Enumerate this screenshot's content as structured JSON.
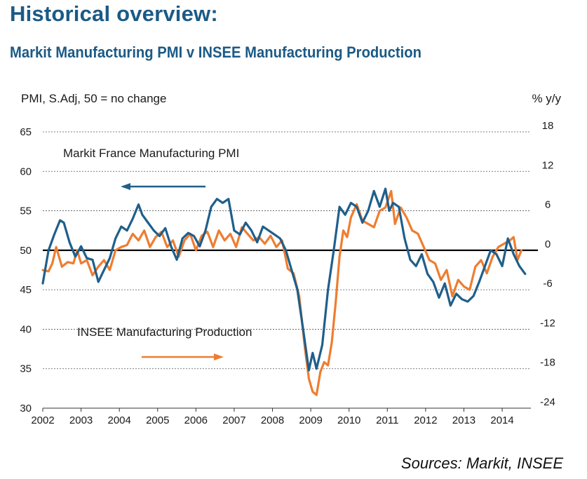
{
  "header": {
    "title": "Historical overview:",
    "subtitle": "Markit Manufacturing PMI v INSEE Manufacturing Production"
  },
  "footer": {
    "source": "Sources: Markit, INSEE"
  },
  "chart_data": {
    "type": "line",
    "left_unit": "PMI, S.Adj, 50 = no change",
    "right_unit": "% y/y",
    "left_axis": {
      "min": 30,
      "max": 65,
      "ticks": [
        30,
        35,
        40,
        45,
        50,
        55,
        60,
        65
      ]
    },
    "right_axis": {
      "min": -24,
      "max": 18,
      "ticks": [
        -24,
        -18,
        -12,
        -6,
        0,
        6,
        12,
        18
      ]
    },
    "x_axis": {
      "min": 2002,
      "max": 2014.75,
      "ticks": [
        "2002",
        "2003",
        "2004",
        "2005",
        "2006",
        "2007",
        "2008",
        "2009",
        "2010",
        "2011",
        "2012",
        "2013",
        "2014"
      ]
    },
    "grid": "dashed horizontal",
    "reference_line": {
      "axis": "left",
      "value": 50
    },
    "colors": {
      "pmi": "#1f5f8b",
      "production": "#ee7d31",
      "grid": "#555555"
    },
    "annotations": [
      {
        "text": "Markit France Manufacturing  PMI",
        "series": "pmi",
        "arrow": "left"
      },
      {
        "text": "INSEE Manufacturing  Production",
        "series": "production",
        "arrow": "right"
      }
    ],
    "series": [
      {
        "name": "Markit France Manufacturing  PMI",
        "axis": "left",
        "x": [
          2002.0,
          2002.15,
          2002.3,
          2002.45,
          2002.55,
          2002.7,
          2002.85,
          2003.0,
          2003.15,
          2003.3,
          2003.45,
          2003.6,
          2003.75,
          2003.9,
          2004.05,
          2004.2,
          2004.35,
          2004.5,
          2004.6,
          2004.75,
          2004.9,
          2005.05,
          2005.2,
          2005.35,
          2005.5,
          2005.65,
          2005.8,
          2005.95,
          2006.1,
          2006.25,
          2006.4,
          2006.55,
          2006.7,
          2006.85,
          2007.0,
          2007.15,
          2007.3,
          2007.45,
          2007.6,
          2007.75,
          2007.9,
          2008.05,
          2008.2,
          2008.35,
          2008.5,
          2008.65,
          2008.8,
          2008.95,
          2009.05,
          2009.15,
          2009.3,
          2009.45,
          2009.6,
          2009.75,
          2009.9,
          2010.05,
          2010.2,
          2010.35,
          2010.5,
          2010.65,
          2010.8,
          2010.95,
          2011.05,
          2011.15,
          2011.3,
          2011.45,
          2011.6,
          2011.75,
          2011.9,
          2012.05,
          2012.2,
          2012.35,
          2012.5,
          2012.65,
          2012.8,
          2012.95,
          2013.1,
          2013.25,
          2013.4,
          2013.55,
          2013.7,
          2013.85,
          2014.0,
          2014.15,
          2014.3,
          2014.45,
          2014.6
        ],
        "values": [
          45.8,
          50.0,
          52.0,
          53.8,
          53.5,
          51.0,
          49.2,
          50.5,
          49.0,
          48.8,
          46.0,
          47.5,
          49.0,
          51.5,
          53.0,
          52.5,
          54.0,
          55.8,
          54.5,
          53.5,
          52.5,
          51.8,
          52.8,
          50.5,
          48.8,
          51.5,
          52.2,
          51.8,
          50.5,
          52.5,
          55.5,
          56.5,
          56.0,
          56.5,
          52.5,
          52.0,
          53.5,
          52.5,
          51.0,
          53.0,
          52.5,
          52.0,
          51.5,
          50.0,
          47.5,
          45.0,
          40.0,
          34.8,
          37.0,
          35.0,
          38.0,
          45.0,
          50.0,
          55.5,
          54.5,
          56.0,
          55.5,
          53.5,
          55.0,
          57.5,
          55.5,
          57.8,
          55.0,
          56.0,
          55.5,
          51.5,
          48.8,
          48.0,
          49.5,
          47.0,
          46.0,
          44.0,
          45.8,
          43.0,
          44.5,
          43.8,
          43.5,
          44.2,
          46.0,
          48.0,
          50.0,
          49.5,
          48.0,
          51.5,
          49.5,
          48.0,
          47.0
        ]
      },
      {
        "name": "INSEE Manufacturing  Production",
        "axis": "right",
        "x": [
          2002.0,
          2002.15,
          2002.25,
          2002.35,
          2002.5,
          2002.65,
          2002.8,
          2002.9,
          2003.0,
          2003.15,
          2003.3,
          2003.45,
          2003.6,
          2003.75,
          2003.9,
          2004.05,
          2004.2,
          2004.35,
          2004.5,
          2004.65,
          2004.8,
          2004.95,
          2005.1,
          2005.25,
          2005.4,
          2005.55,
          2005.7,
          2005.85,
          2006.0,
          2006.15,
          2006.3,
          2006.45,
          2006.6,
          2006.75,
          2006.9,
          2007.05,
          2007.2,
          2007.35,
          2007.5,
          2007.65,
          2007.8,
          2007.95,
          2008.1,
          2008.25,
          2008.4,
          2008.55,
          2008.7,
          2008.85,
          2008.95,
          2009.05,
          2009.15,
          2009.25,
          2009.35,
          2009.45,
          2009.55,
          2009.65,
          2009.75,
          2009.85,
          2009.95,
          2010.05,
          2010.2,
          2010.35,
          2010.5,
          2010.65,
          2010.8,
          2010.95,
          2011.1,
          2011.2,
          2011.35,
          2011.5,
          2011.65,
          2011.8,
          2011.95,
          2012.1,
          2012.25,
          2012.4,
          2012.55,
          2012.7,
          2012.85,
          2013.0,
          2013.15,
          2013.3,
          2013.45,
          2013.6,
          2013.75,
          2013.9,
          2014.05,
          2014.2,
          2014.3,
          2014.4,
          2014.5
        ],
        "values": [
          -3.0,
          -3.2,
          -2.0,
          0.5,
          -2.5,
          -1.8,
          -2.0,
          0.0,
          -2.0,
          -1.5,
          -3.8,
          -2.5,
          -1.5,
          -3.0,
          0.0,
          0.5,
          0.8,
          2.5,
          1.5,
          3.0,
          0.5,
          2.0,
          2.8,
          0.5,
          1.5,
          -1.0,
          1.5,
          2.5,
          0.0,
          2.2,
          2.8,
          0.5,
          3.0,
          1.5,
          2.5,
          0.5,
          3.5,
          2.5,
          1.5,
          2.0,
          1.0,
          2.2,
          0.5,
          1.5,
          -2.8,
          -3.5,
          -7.0,
          -15.0,
          -19.5,
          -21.5,
          -22.0,
          -18.5,
          -17.0,
          -17.5,
          -14.0,
          -8.0,
          -1.0,
          3.0,
          2.0,
          5.0,
          7.0,
          4.5,
          4.0,
          3.5,
          6.0,
          6.5,
          9.0,
          4.0,
          6.5,
          5.0,
          3.0,
          2.5,
          0.5,
          -1.5,
          -2.0,
          -4.5,
          -3.0,
          -7.0,
          -4.5,
          -5.5,
          -6.0,
          -2.5,
          -1.5,
          -3.5,
          -1.0,
          0.5,
          1.0,
          1.5,
          2.0,
          -1.5,
          0.0
        ]
      }
    ]
  }
}
